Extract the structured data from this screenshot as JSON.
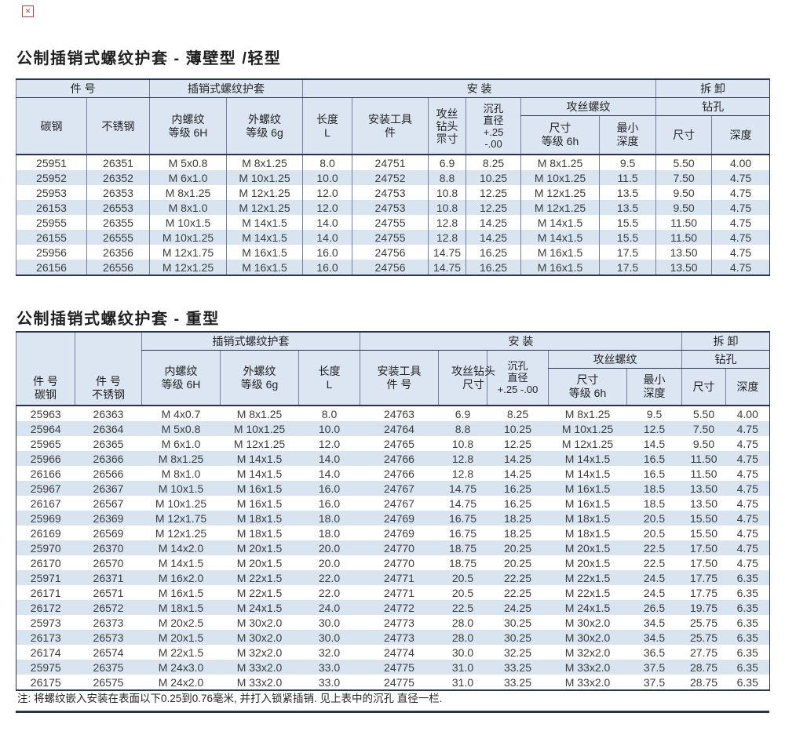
{
  "colors": {
    "header_bg": "#dce6f2",
    "stripe_bg": "#d9e4f1",
    "border_dark": "#273449",
    "border_line": "#71819b",
    "title_text": "#1f1f1f",
    "body_text": "#3c3c3c",
    "accent_red": "#bf4040"
  },
  "icons": {
    "broken_image": "✕"
  },
  "page": {
    "title_light": "公制插销式螺纹护套 - 薄壁型 /轻型",
    "title_heavy": "公制插销式螺纹护套 - 重型",
    "note": "注: 将螺纹嵌入安装在表面以下0.25到0.76毫米, 并打入锁紧插销. 见上表中的沉孔 直径一栏."
  },
  "table1": {
    "groups": {
      "part_no": "件  号",
      "insert": "插销式螺纹护套",
      "install": "安  装",
      "removal": "拆  卸",
      "tap_thread": "攻丝螺纹",
      "drill_hole": "钻孔"
    },
    "headers": {
      "carbon": "碳钢",
      "stainless": "不锈钢",
      "internal": [
        "内螺纹",
        "等级 6H"
      ],
      "external": [
        "外螺纹",
        "等级 6g"
      ],
      "length": [
        "长度",
        "L"
      ],
      "tool": [
        "安装工具",
        "件"
      ],
      "tap_drill": [
        "攻丝",
        "钻头",
        "眔寸"
      ],
      "cbore": [
        "沉孔",
        "直径",
        "+.25",
        "-.00"
      ],
      "tap_size": [
        "尺寸",
        "等级 6h"
      ],
      "min_depth": [
        "最小",
        "深度"
      ],
      "drill_size": "尺寸",
      "drill_depth": "深度"
    },
    "rows": [
      [
        "25951",
        "26351",
        "M 5x0.8",
        "M 8x1.25",
        "8.0",
        "24751",
        "6.9",
        "8.25",
        "M 8x1.25",
        "9.5",
        "5.50",
        "4.00"
      ],
      [
        "25952",
        "26352",
        "M 6x1.0",
        "M 10x1.25",
        "10.0",
        "24752",
        "8.8",
        "10.25",
        "M 10x1.25",
        "11.5",
        "7.50",
        "4.75"
      ],
      [
        "25953",
        "26353",
        "M 8x1.25",
        "M 12x1.25",
        "12.0",
        "24753",
        "10.8",
        "12.25",
        "M 12x1.25",
        "13.5",
        "9.50",
        "4.75"
      ],
      [
        "26153",
        "26553",
        "M 8x1.0",
        "M 12x1.25",
        "12.0",
        "24753",
        "10.8",
        "12.25",
        "M 12x1.25",
        "13.5",
        "9.50",
        "4.75"
      ],
      [
        "25955",
        "26355",
        "M 10x1.5",
        "M 14x1.5",
        "14.0",
        "24755",
        "12.8",
        "14.25",
        "M 14x1.5",
        "15.5",
        "11.50",
        "4.75"
      ],
      [
        "26155",
        "26555",
        "M 10x1.25",
        "M 14x1.5",
        "14.0",
        "24755",
        "12.8",
        "14.25",
        "M 14x1.5",
        "15.5",
        "11.50",
        "4.75"
      ],
      [
        "25956",
        "26356",
        "M 12x1.75",
        "M 16x1.5",
        "16.0",
        "24756",
        "14.75",
        "16.25",
        "M 16x1.5",
        "17.5",
        "13.50",
        "4.75"
      ],
      [
        "26156",
        "26556",
        "M 12x1.25",
        "M 16x1.5",
        "16.0",
        "24756",
        "14.75",
        "16.25",
        "M 16x1.5",
        "17.5",
        "13.50",
        "4.75"
      ]
    ]
  },
  "table2": {
    "groups": {
      "insert": "插销式螺纹护套",
      "install": "安  装",
      "removal": "拆  卸",
      "tap_thread": "攻丝螺纹",
      "drill_hole": "钻孔"
    },
    "headers": {
      "part_carbon": [
        "件 号",
        "碳钢"
      ],
      "part_stainless": [
        "件 号",
        "不锈钢"
      ],
      "internal": [
        "内螺纹",
        "等级 6H"
      ],
      "external": [
        "外螺纹",
        "等级 6g"
      ],
      "length": [
        "长度",
        "L"
      ],
      "tool": [
        "安装工具",
        "件 号"
      ],
      "tap_drill": [
        "攻丝钻头",
        "尺寸"
      ],
      "cbore": [
        "沉孔",
        "直径",
        "+.25 -.00"
      ],
      "tap_size": [
        "尺寸",
        "等级 6h"
      ],
      "min_depth": [
        "最小",
        "深度"
      ],
      "drill_size": "尺寸",
      "drill_depth": "深度"
    },
    "rows": [
      [
        "25963",
        "26363",
        "M 4x0.7",
        "M 8x1.25",
        "8.0",
        "24763",
        "6.9",
        "8.25",
        "M 8x1.25",
        "9.5",
        "5.50",
        "4.00"
      ],
      [
        "25964",
        "26364",
        "M 5x0.8",
        "M 10x1.25",
        "10.0",
        "24764",
        "8.8",
        "10.25",
        "M 10x1.25",
        "12.5",
        "7.50",
        "4.75"
      ],
      [
        "25965",
        "26365",
        "M 6x1.0",
        "M 12x1.25",
        "12.0",
        "24765",
        "10.8",
        "12.25",
        "M 12x1.25",
        "14.5",
        "9.50",
        "4.75"
      ],
      [
        "25966",
        "26366",
        "M 8x1.25",
        "M 14x1.5",
        "14.0",
        "24766",
        "12.8",
        "14.25",
        "M 14x1.5",
        "16.5",
        "11.50",
        "4.75"
      ],
      [
        "26166",
        "26566",
        "M 8x1.0",
        "M 14x1.5",
        "14.0",
        "24766",
        "12.8",
        "14.25",
        "M 14x1.5",
        "16.5",
        "11.50",
        "4.75"
      ],
      [
        "25967",
        "26367",
        "M 10x1.5",
        "M 16x1.5",
        "16.0",
        "24767",
        "14.75",
        "16.25",
        "M 16x1.5",
        "18.5",
        "13.50",
        "4.75"
      ],
      [
        "26167",
        "26567",
        "M 10x1.25",
        "M 16x1.5",
        "16.0",
        "24767",
        "14.75",
        "16.25",
        "M 16x1.5",
        "18.5",
        "13.50",
        "4.75"
      ],
      [
        "25969",
        "26369",
        "M 12x1.75",
        "M 18x1.5",
        "18.0",
        "24769",
        "16.75",
        "18.25",
        "M 18x1.5",
        "20.5",
        "15.50",
        "4.75"
      ],
      [
        "26169",
        "26569",
        "M 12x1.25",
        "M 18x1.5",
        "18.0",
        "24769",
        "16.75",
        "18.25",
        "M 18x1.5",
        "20.5",
        "15.50",
        "4.75"
      ],
      [
        "25970",
        "26370",
        "M 14x2.0",
        "M 20x1.5",
        "20.0",
        "24770",
        "18.75",
        "20.25",
        "M 20x1.5",
        "22.5",
        "17.50",
        "4.75"
      ],
      [
        "26170",
        "26570",
        "M 14x1.5",
        "M 20x1.5",
        "20.0",
        "24770",
        "18.75",
        "20.25",
        "M 20x1.5",
        "22.5",
        "17.50",
        "4.75"
      ],
      [
        "25971",
        "26371",
        "M 16x2.0",
        "M 22x1.5",
        "22.0",
        "24771",
        "20.5",
        "22.25",
        "M 22x1.5",
        "24.5",
        "17.75",
        "6.35"
      ],
      [
        "26171",
        "26571",
        "M 16x1.5",
        "M 22x1.5",
        "22.0",
        "24771",
        "20.5",
        "22.25",
        "M 22x1.5",
        "24.5",
        "17.75",
        "6.35"
      ],
      [
        "26172",
        "26572",
        "M 18x1.5",
        "M 24x1.5",
        "24.0",
        "24772",
        "22.5",
        "24.25",
        "M 24x1.5",
        "26.5",
        "19.75",
        "6.35"
      ],
      [
        "25973",
        "26373",
        "M 20x2.5",
        "M 30x2.0",
        "30.0",
        "24773",
        "28.0",
        "30.25",
        "M 30x2.0",
        "34.5",
        "25.75",
        "6.35"
      ],
      [
        "26173",
        "26573",
        "M 20x1.5",
        "M 30x2.0",
        "30.0",
        "24773",
        "28.0",
        "30.25",
        "M 30x2.0",
        "34.5",
        "25.75",
        "6.35"
      ],
      [
        "26174",
        "26574",
        "M 22x1.5",
        "M 32x2.0",
        "32.0",
        "24774",
        "30.0",
        "32.25",
        "M 32x2.0",
        "36.5",
        "27.75",
        "6.35"
      ],
      [
        "25975",
        "26375",
        "M 24x3.0",
        "M 33x2.0",
        "33.0",
        "24775",
        "31.0",
        "33.25",
        "M 33x2.0",
        "37.5",
        "28.75",
        "6.35"
      ],
      [
        "26175",
        "26575",
        "M 24x2.0",
        "M 33x2.0",
        "33.0",
        "24775",
        "31.0",
        "33.25",
        "M 33x2.0",
        "37.5",
        "28.75",
        "6.35"
      ]
    ]
  }
}
